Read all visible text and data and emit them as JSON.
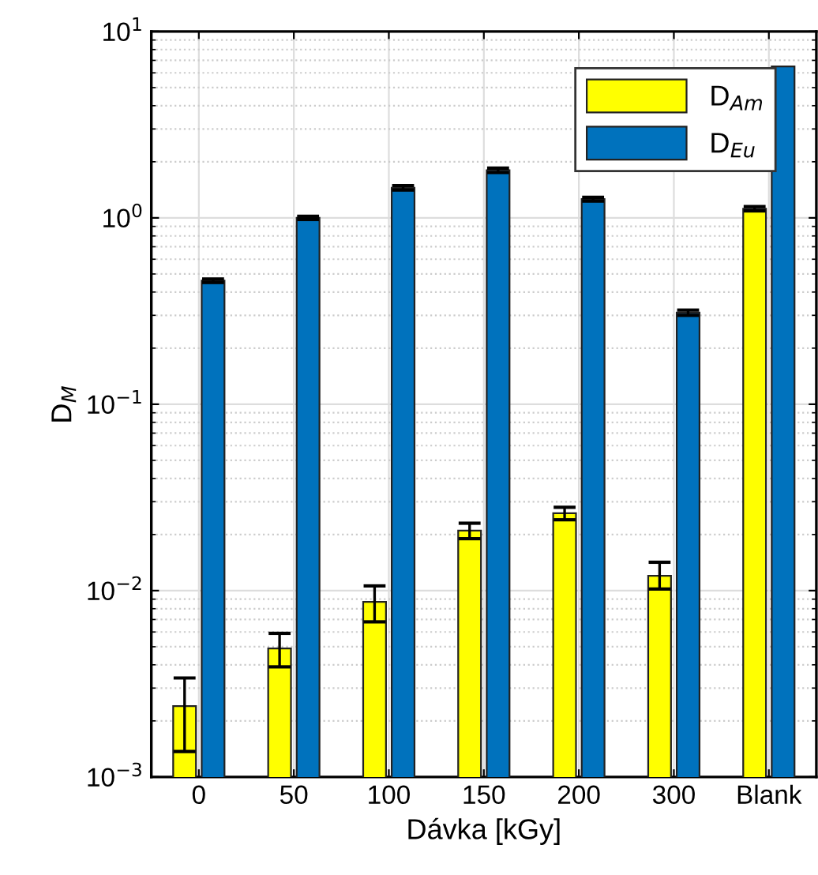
{
  "chart_data": {
    "type": "bar",
    "xlabel": "Dávka [kGy]",
    "ylabel": "D$_{M}$",
    "categories": [
      "0",
      "50",
      "100",
      "150",
      "200",
      "300",
      "Blank"
    ],
    "series": [
      {
        "name": "D$_{Am}$",
        "color": "#ffff00",
        "values": [
          0.0024,
          0.0049,
          0.0087,
          0.021,
          0.026,
          0.012,
          1.12
        ],
        "errors": [
          [
            0.00137,
            0.0034
          ],
          [
            0.0039,
            0.0059
          ],
          [
            0.0068,
            0.0106
          ],
          [
            0.019,
            0.023
          ],
          [
            0.024,
            0.028
          ],
          [
            0.0102,
            0.0142
          ],
          [
            1.09,
            1.15
          ]
        ]
      },
      {
        "name": "D$_{Eu}$",
        "color": "#0072bd",
        "values": [
          0.46,
          1.0,
          1.45,
          1.8,
          1.26,
          0.31,
          6.5
        ],
        "errors": [
          [
            0.45,
            0.47
          ],
          [
            0.98,
            1.02
          ],
          [
            1.41,
            1.49
          ],
          [
            1.75,
            1.85
          ],
          [
            1.23,
            1.29
          ],
          [
            0.3,
            0.32
          ],
          null
        ]
      }
    ],
    "log": "y",
    "ylim": [
      0.001,
      10
    ],
    "yticks": [
      {
        "value": 0.001,
        "label": "10$^{−3}$"
      },
      {
        "value": 0.01,
        "label": "10$^{−2}$"
      },
      {
        "value": 0.1,
        "label": "10$^{−1}$"
      },
      {
        "value": 1,
        "label": "10$^{0}$"
      },
      {
        "value": 10,
        "label": "10$^{1}$"
      }
    ],
    "grid": true,
    "legend": "top right"
  }
}
